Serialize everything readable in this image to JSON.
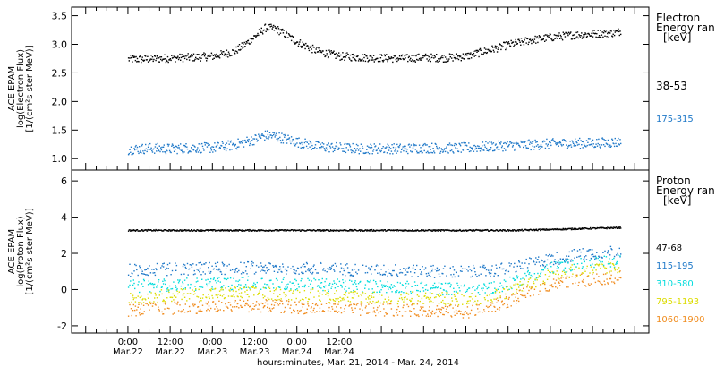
{
  "chart_data": [
    {
      "type": "scatter",
      "ylabel_lines": [
        "ACE EPAM",
        "log(Electron Flux)",
        "[1/(cm²s ster MeV)]"
      ],
      "legend_title": [
        "Electron",
        "Energy ran",
        "[keV]"
      ],
      "ylim": [
        0.8,
        3.65
      ],
      "y_ticks": [
        "1.0",
        "1.5",
        "2.0",
        "2.5",
        "3.0",
        "3.5"
      ],
      "y_tick_values": [
        1.0,
        1.5,
        2.0,
        2.5,
        3.0,
        3.5
      ],
      "series": [
        {
          "name": "38-53",
          "color": "#000000",
          "x": [
            0,
            6,
            12,
            18,
            24,
            30,
            33,
            36,
            39,
            42,
            48,
            54,
            60,
            66,
            72,
            78,
            84,
            90,
            96,
            102,
            108,
            114,
            120,
            126,
            132,
            138,
            140
          ],
          "y": [
            2.75,
            2.75,
            2.77,
            2.78,
            2.8,
            2.88,
            3.0,
            3.15,
            3.3,
            3.28,
            3.05,
            2.88,
            2.8,
            2.78,
            2.77,
            2.76,
            2.78,
            2.77,
            2.8,
            2.9,
            3.0,
            3.08,
            3.13,
            3.17,
            3.19,
            3.21,
            3.24
          ]
        },
        {
          "name": "175-315",
          "color": "#1e78c8",
          "x": [
            0,
            6,
            12,
            18,
            24,
            30,
            36,
            39,
            42,
            48,
            54,
            60,
            66,
            72,
            78,
            84,
            90,
            96,
            102,
            108,
            114,
            120,
            126,
            132,
            140
          ],
          "y": [
            1.17,
            1.19,
            1.18,
            1.2,
            1.2,
            1.25,
            1.35,
            1.42,
            1.4,
            1.3,
            1.22,
            1.2,
            1.18,
            1.19,
            1.18,
            1.2,
            1.19,
            1.2,
            1.22,
            1.24,
            1.25,
            1.27,
            1.28,
            1.28,
            1.3
          ]
        }
      ]
    },
    {
      "type": "scatter",
      "ylabel_lines": [
        "ACE EPAM",
        "log(Proton Flux)",
        "[1/(cm²s ster MeV)]"
      ],
      "legend_title": [
        "Proton",
        "Energy ran",
        "[keV]"
      ],
      "ylim": [
        -2.4,
        6.6
      ],
      "y_ticks": [
        "-2",
        "0",
        "2",
        "4",
        "6"
      ],
      "y_tick_values": [
        -2,
        0,
        2,
        4,
        6
      ],
      "series": [
        {
          "name": "47-68",
          "color": "#000000",
          "x": [
            0,
            20,
            40,
            60,
            80,
            100,
            110,
            120,
            130,
            140
          ],
          "y": [
            3.3,
            3.3,
            3.3,
            3.3,
            3.3,
            3.3,
            3.3,
            3.35,
            3.4,
            3.45
          ]
        },
        {
          "name": "115-195",
          "color": "#1e78c8",
          "x": [
            0,
            12,
            24,
            36,
            48,
            60,
            72,
            84,
            96,
            102,
            108,
            114,
            120,
            126,
            132,
            140
          ],
          "y": [
            1.1,
            1.15,
            1.2,
            1.25,
            1.22,
            1.15,
            1.1,
            1.05,
            1.0,
            1.05,
            1.2,
            1.45,
            1.7,
            1.9,
            2.05,
            2.2
          ]
        },
        {
          "name": "310-580",
          "color": "#00dcdc",
          "x": [
            0,
            12,
            24,
            36,
            48,
            60,
            72,
            84,
            96,
            102,
            108,
            114,
            120,
            126,
            132,
            140
          ],
          "y": [
            0.2,
            0.3,
            0.35,
            0.4,
            0.35,
            0.25,
            0.2,
            0.1,
            0.05,
            0.1,
            0.35,
            0.8,
            1.2,
            1.4,
            1.5,
            1.6
          ]
        },
        {
          "name": "795-1193",
          "color": "#dcdc00",
          "x": [
            0,
            12,
            24,
            36,
            48,
            60,
            72,
            84,
            96,
            102,
            108,
            114,
            120,
            126,
            132,
            140
          ],
          "y": [
            -0.4,
            -0.3,
            -0.2,
            -0.15,
            -0.25,
            -0.35,
            -0.4,
            -0.45,
            -0.5,
            -0.4,
            -0.1,
            0.4,
            0.85,
            1.05,
            1.15,
            1.3
          ]
        },
        {
          "name": "1060-1900",
          "color": "#f08c1e",
          "x": [
            0,
            12,
            24,
            36,
            48,
            60,
            72,
            84,
            96,
            102,
            108,
            114,
            120,
            126,
            132,
            140
          ],
          "y": [
            -1.1,
            -1.0,
            -0.9,
            -0.85,
            -0.95,
            -1.05,
            -1.1,
            -1.1,
            -1.2,
            -1.0,
            -0.6,
            -0.1,
            0.3,
            0.5,
            0.6,
            0.75
          ]
        }
      ]
    }
  ],
  "x_axis": {
    "xlim": [
      -16,
      148
    ],
    "ticks": [
      {
        "x": 0,
        "time": "0:00",
        "date": "Mar.22"
      },
      {
        "x": 12,
        "time": "12:00",
        "date": "Mar.22"
      },
      {
        "x": 24,
        "time": "0:00",
        "date": "Mar.23"
      },
      {
        "x": 36,
        "time": "12:00",
        "date": "Mar.23"
      },
      {
        "x": 48,
        "time": "0:00",
        "date": "Mar.24"
      },
      {
        "x": 60,
        "time": "12:00",
        "date": "Mar.24"
      }
    ],
    "label": "hours:minutes, Mar. 21, 2014 - Mar. 24, 2014"
  }
}
